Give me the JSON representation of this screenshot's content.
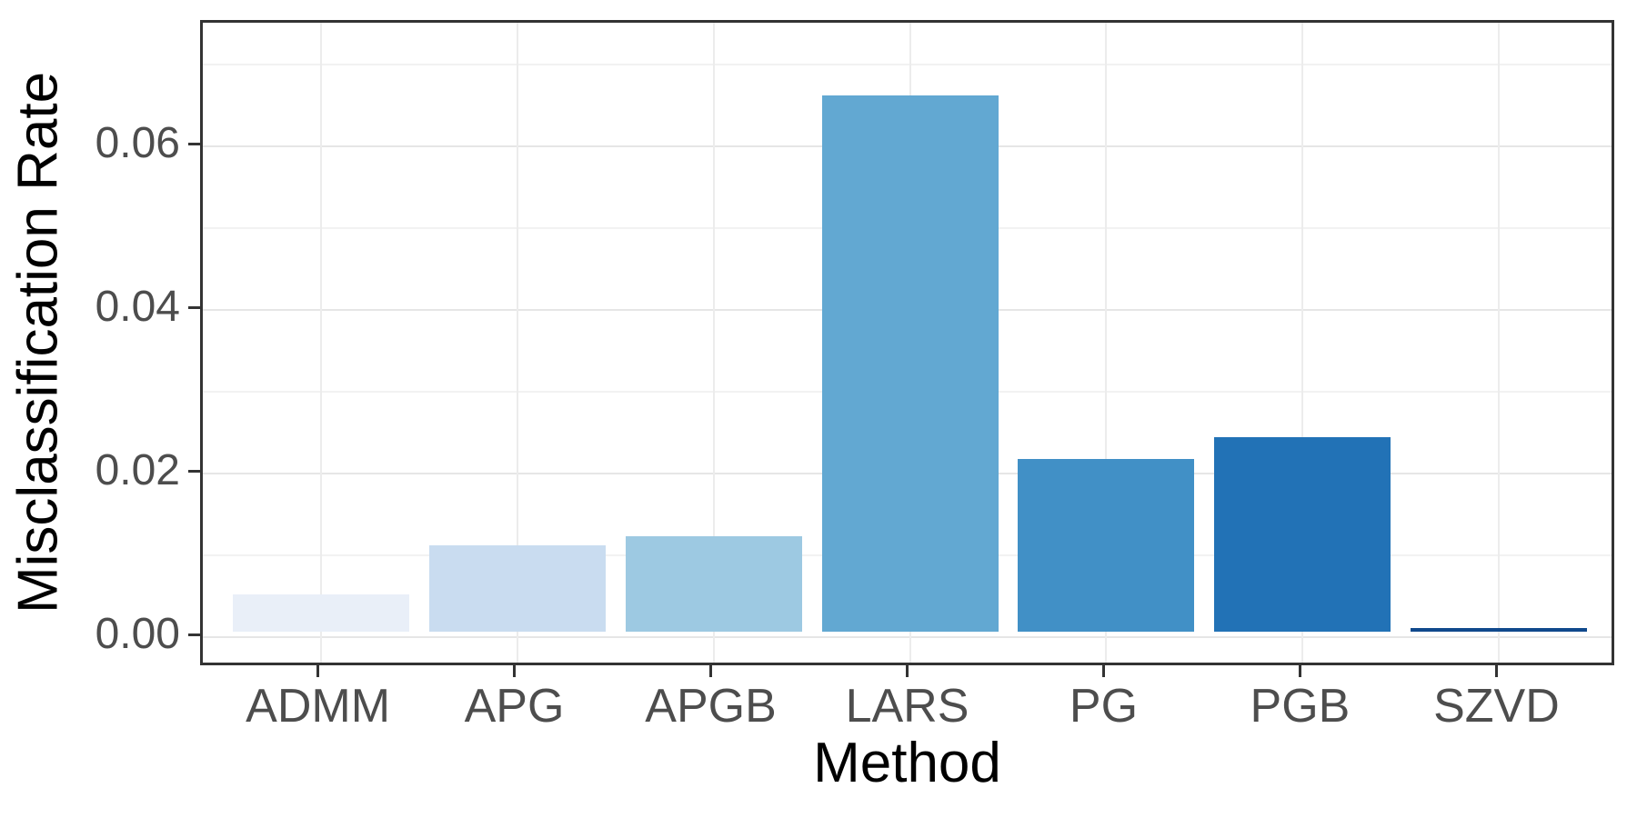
{
  "chart_data": {
    "type": "bar",
    "title": "",
    "xlabel": "Method",
    "ylabel": "Misclassification Rate",
    "categories": [
      "ADMM",
      "APG",
      "APGB",
      "LARS",
      "PG",
      "PGB",
      "SZVD"
    ],
    "values": [
      0.0046,
      0.0106,
      0.0117,
      0.0656,
      0.0211,
      0.0238,
      0.0004
    ],
    "bar_colors": [
      "#E9EFF8",
      "#C9DCF0",
      "#9DC9E2",
      "#62A8D2",
      "#4190C6",
      "#2272B6",
      "#10498C"
    ],
    "y_ticks": [
      {
        "label": "0.00",
        "value": 0.0
      },
      {
        "label": "0.02",
        "value": 0.02
      },
      {
        "label": "0.04",
        "value": 0.04
      },
      {
        "label": "0.06",
        "value": 0.06
      }
    ],
    "y_minor_ticks": [
      0.01,
      0.03,
      0.05,
      0.07
    ],
    "ylim": [
      -0.0038,
      0.075
    ],
    "grid": "major and minor horizontal, major vertical at category centers",
    "legend_position": "none",
    "style": {
      "panel_background": "#FFFFFF",
      "panel_border": "#333333",
      "major_grid_color": "#E6E6E6",
      "minor_grid_color": "#F2F2F2",
      "vertical_grid_color": "#ECECEC",
      "tick_color": "#333333",
      "axis_text_color": "#4D4D4D",
      "axis_title_color": "#000000"
    }
  }
}
